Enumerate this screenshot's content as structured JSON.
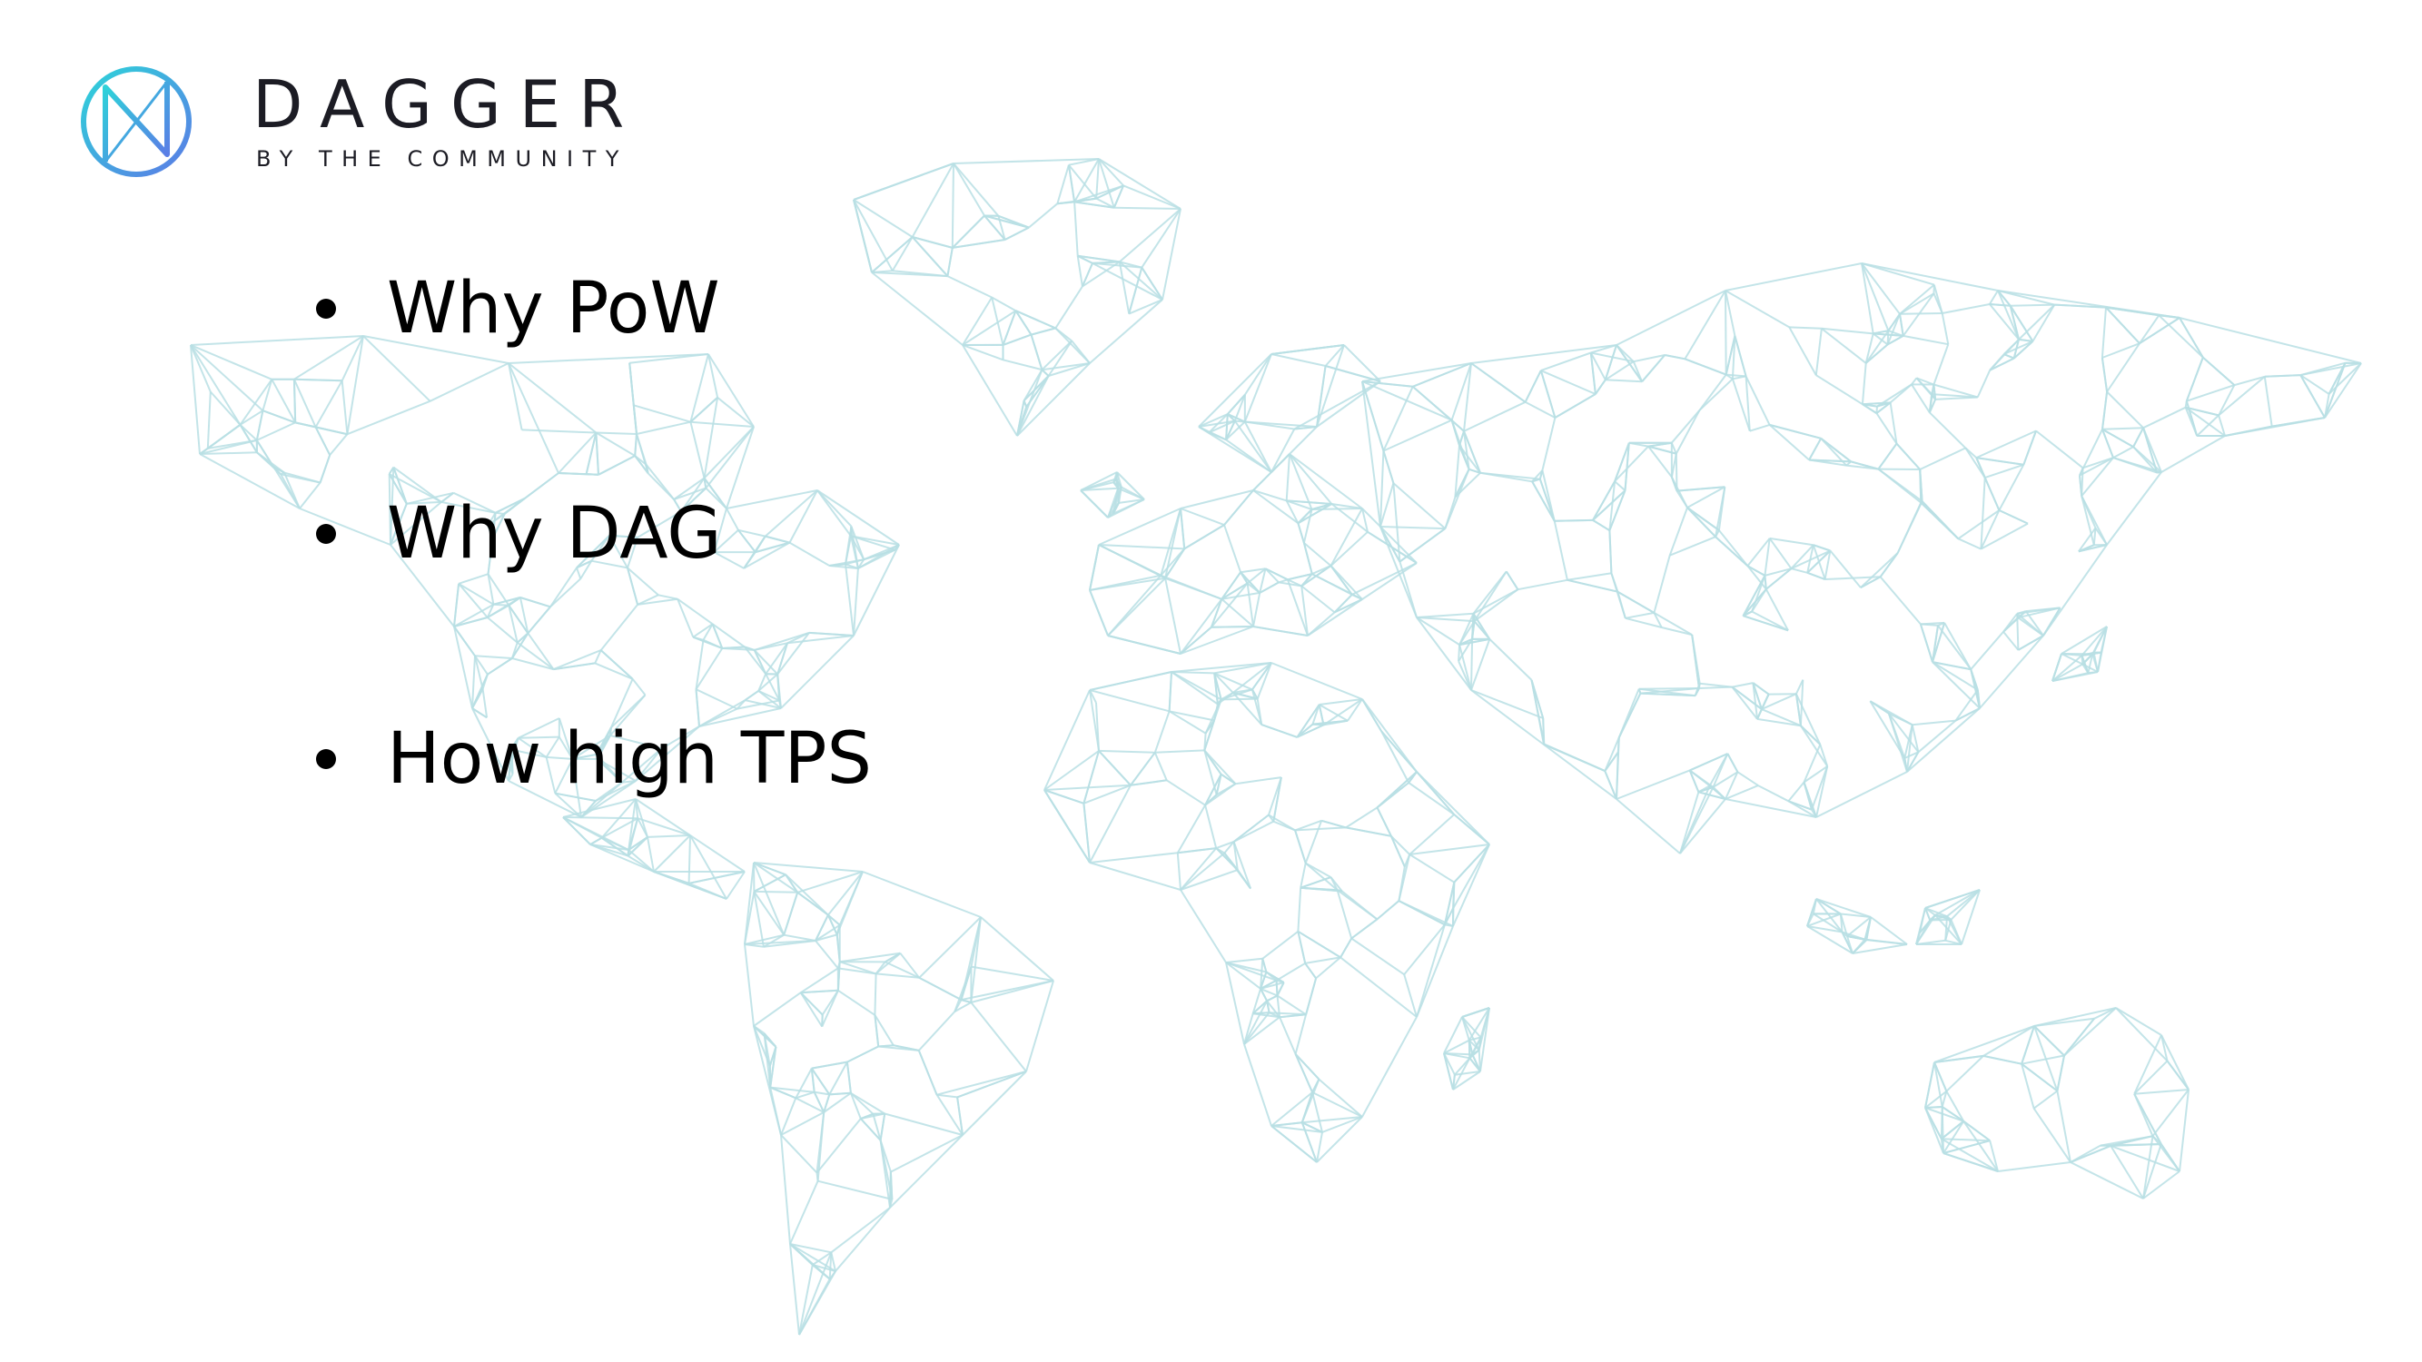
{
  "logo": {
    "icon": "dagger-logo-icon",
    "name": "DAGGER",
    "tagline": "BY THE COMMUNITY"
  },
  "bullets": [
    {
      "label": "Why PoW"
    },
    {
      "label": "Why DAG"
    },
    {
      "label": "How high TPS"
    }
  ],
  "background": {
    "icon": "world-map-mesh-icon",
    "color": "#b9dfe4"
  },
  "colors": {
    "logo_gradient_start": "#2dd4d9",
    "logo_gradient_end": "#5b7be6",
    "text": "#000000"
  }
}
